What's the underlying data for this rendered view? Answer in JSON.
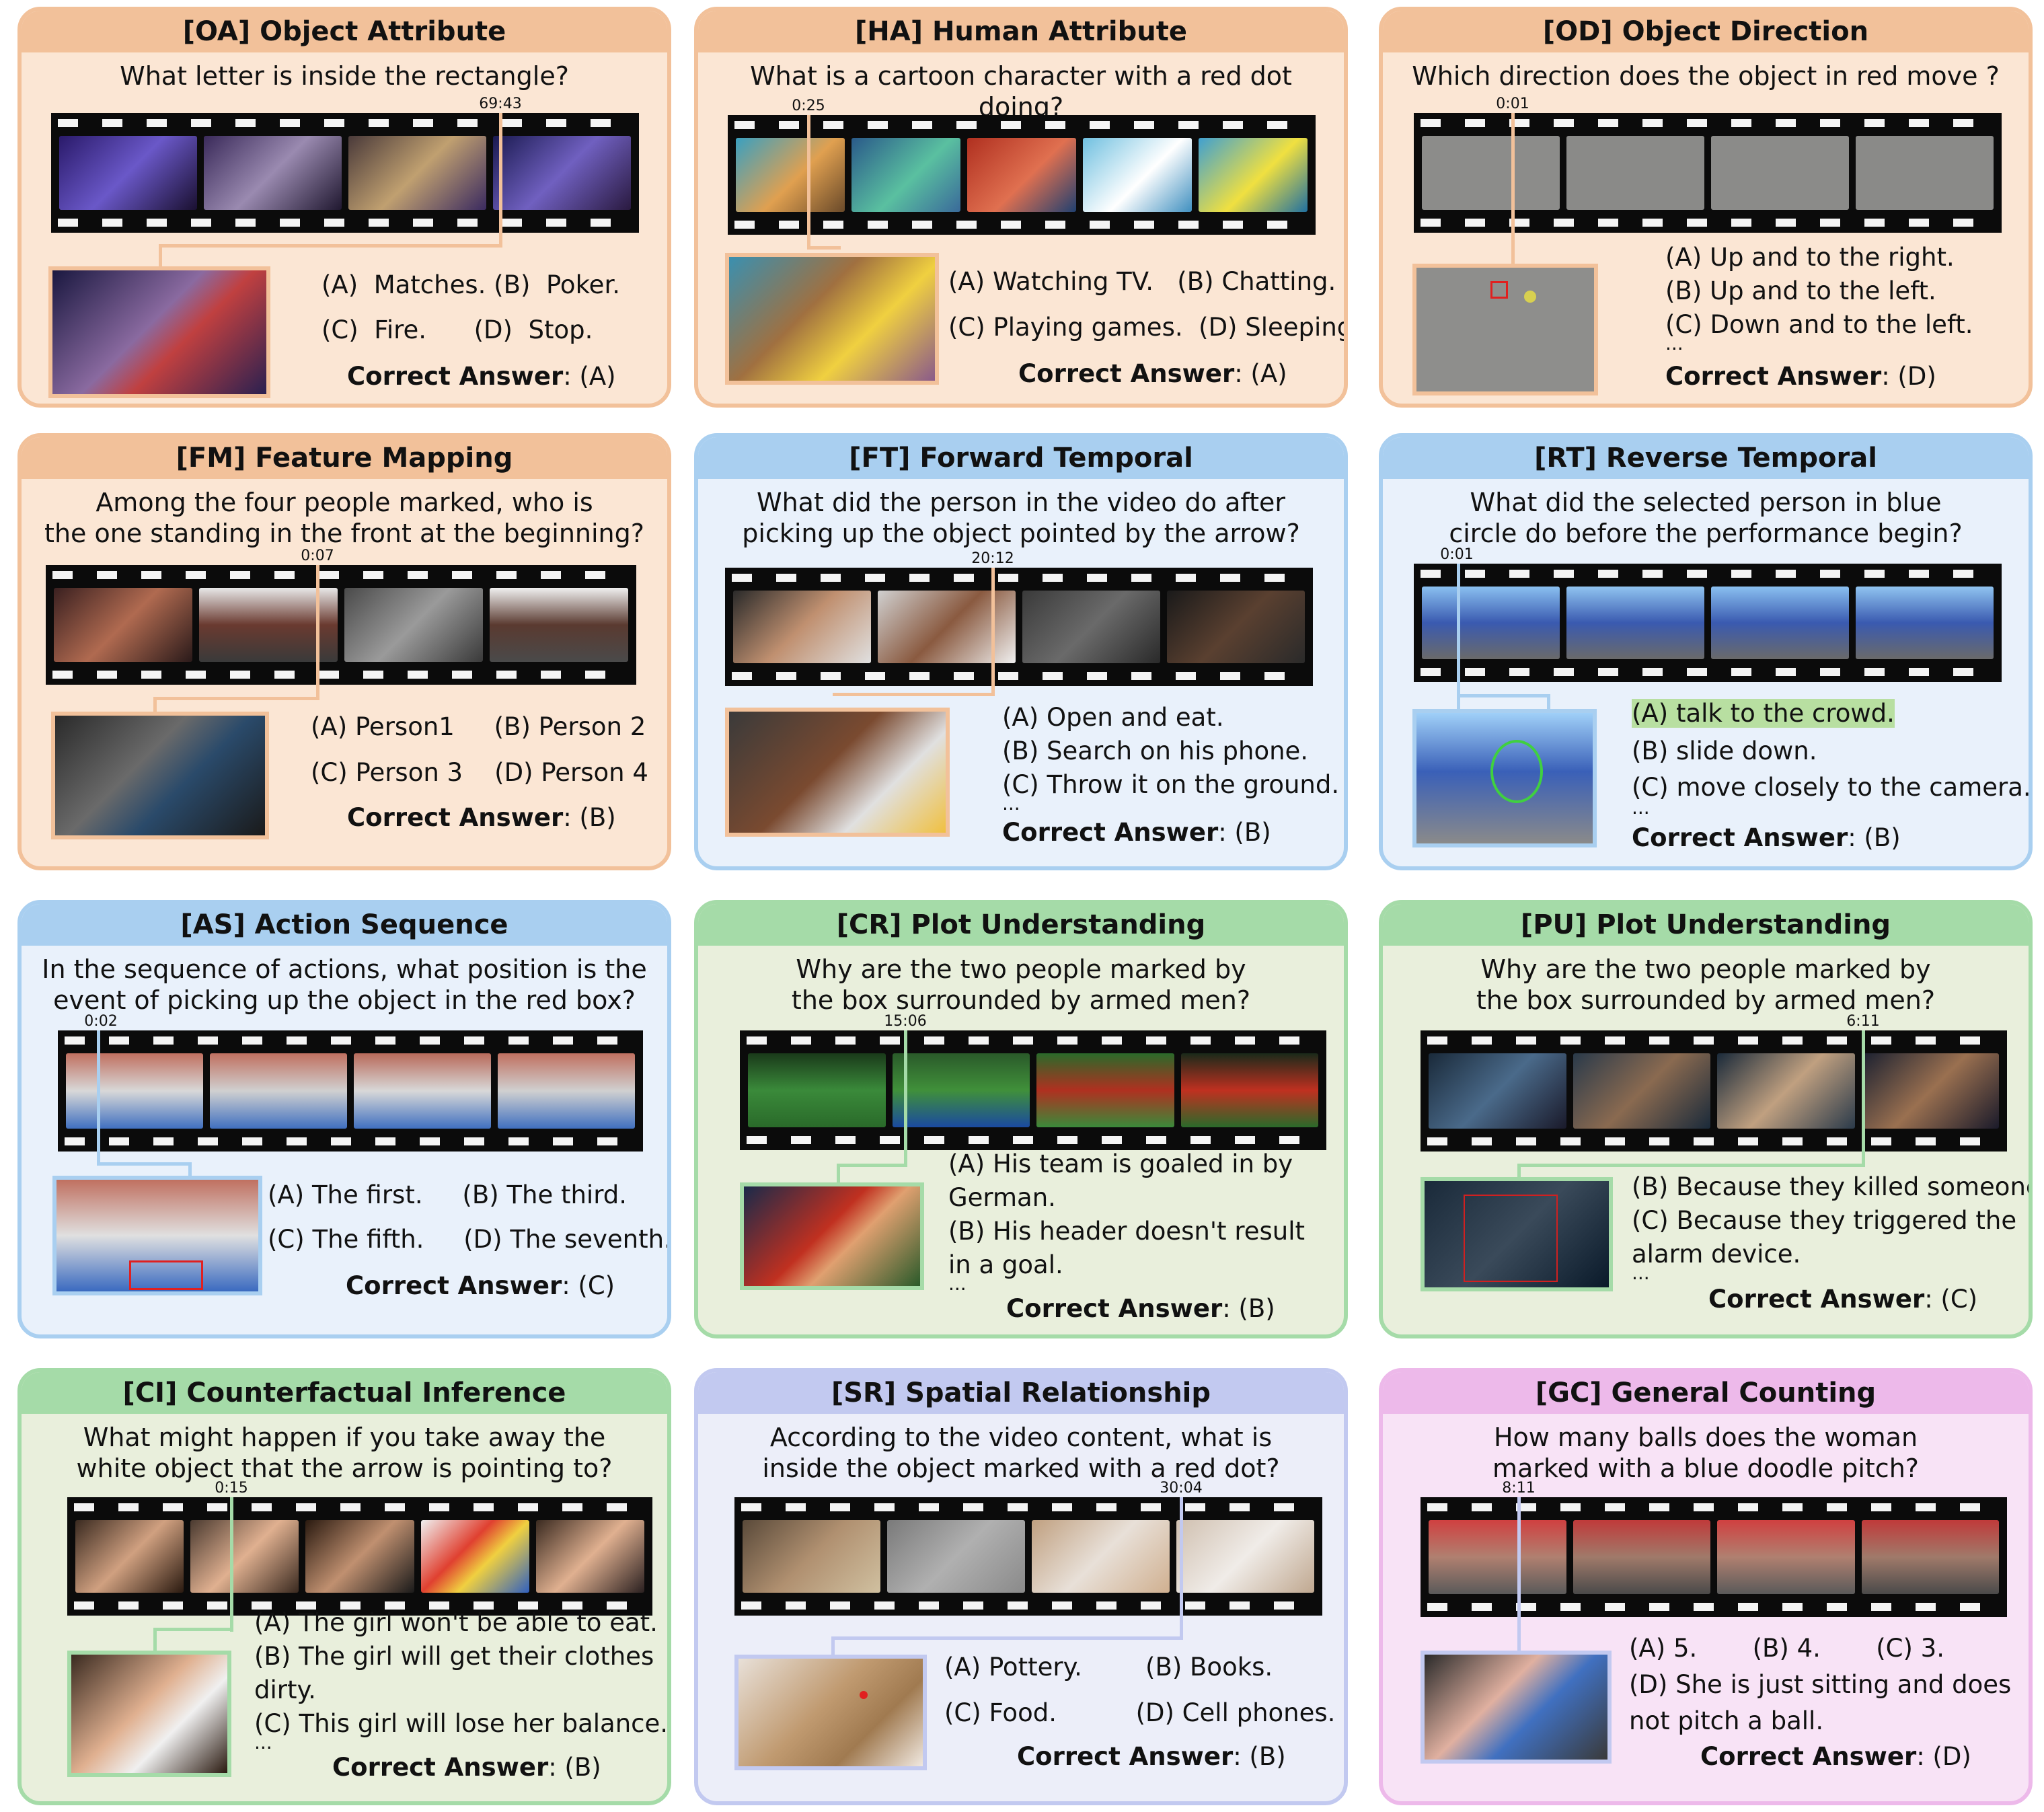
{
  "panels": [
    {
      "id": "oa",
      "title": "[OA] Object Attribute",
      "question": "What letter is inside the rectangle?",
      "timestamp": "69:43",
      "answers": [
        "(A)  Matches. (B)  Poker.",
        "(C)  Fire.      (D)  Stop."
      ],
      "correct_label": "Correct Answer",
      "correct": ": (A)"
    },
    {
      "id": "ha",
      "title": "[HA] Human Attribute",
      "question": "What is a cartoon character with a red dot doing?",
      "timestamp": "0:25",
      "answers": [
        "(A) Watching TV.   (B) Chatting.",
        "(C) Playing games.  (D) Sleeping."
      ],
      "correct_label": "Correct Answer",
      "correct": ": (A)"
    },
    {
      "id": "od",
      "title": "[OD] Object Direction",
      "question": "Which direction does the object in red move ?",
      "timestamp": "0:01",
      "answers": [
        "(A) Up and to the right.",
        "(B) Up and to the left.",
        "(C) Down and to the left.",
        "..."
      ],
      "correct_label": "Correct Answer",
      "correct": ": (D)"
    },
    {
      "id": "fm",
      "title": "[FM] Feature Mapping",
      "question": "Among the four people marked, who is\nthe one standing in the front at the beginning?",
      "timestamp": "0:07",
      "answers": [
        "(A) Person1     (B) Person 2",
        "(C) Person 3    (D) Person 4"
      ],
      "correct_label": "Correct Answer",
      "correct": ": (B)"
    },
    {
      "id": "ft",
      "title": "[FT] Forward Temporal",
      "question": "What did the person in the video do after\npicking up the object pointed by the arrow?",
      "timestamp": "20:12",
      "answers": [
        "(A) Open and eat.",
        "(B) Search on his phone.",
        "(C) Throw it on the ground.",
        "..."
      ],
      "correct_label": "Correct Answer",
      "correct": ": (B)"
    },
    {
      "id": "rt",
      "title": "[RT] Reverse Temporal",
      "question": "What did the selected person in blue\ncircle do before the performance begin?",
      "timestamp": "0:01",
      "answers": [
        "(A) talk to the crowd.",
        "(B) slide down.",
        "(C) move closely to the camera.",
        "..."
      ],
      "correct_label": "Correct Answer",
      "correct": ": (B)"
    },
    {
      "id": "as",
      "title": "[AS] Action Sequence",
      "question": "In the sequence of actions, what position is the\nevent of picking up the object in the red box?",
      "timestamp": "0:02",
      "answers": [
        "(A) The first.     (B) The third.",
        "(C) The fifth.     (D) The seventh."
      ],
      "correct_label": "Correct Answer",
      "correct": ": (C)"
    },
    {
      "id": "cr",
      "title": "[CR] Plot Understanding",
      "question": "Why are the two people marked by\nthe box surrounded by armed men?",
      "timestamp": "15:06",
      "answers": [
        "(A) His team is goaled in by",
        "German.",
        "(B) His header doesn't result",
        "in a goal.",
        "..."
      ],
      "correct_label": "Correct Answer",
      "correct": ": (B)"
    },
    {
      "id": "pu",
      "title": "[PU] Plot Understanding",
      "question": "Why are the two people marked by\nthe box surrounded by armed men?",
      "timestamp": "6:11",
      "answers": [
        "(B) Because they killed someone.",
        "(C) Because they triggered the",
        "alarm device.",
        "..."
      ],
      "correct_label": "Correct Answer",
      "correct": ": (C)"
    },
    {
      "id": "ci",
      "title": "[CI] Counterfactual Inference",
      "question": "What might happen if you take away the\nwhite object that the arrow is pointing to?",
      "timestamp": "0:15",
      "answers": [
        "(A) The girl won't be able to eat.",
        "(B) The girl will get their clothes",
        "dirty.",
        "(C) This girl will lose her balance.",
        "..."
      ],
      "correct_label": "Correct Answer",
      "correct": ": (B)"
    },
    {
      "id": "sr",
      "title": "[SR] Spatial Relationship",
      "question": "According to the video content, what is\ninside the object marked with a red dot?",
      "timestamp": "30:04",
      "answers": [
        "(A) Pottery.        (B) Books.",
        "(C) Food.          (D) Cell phones."
      ],
      "correct_label": "Correct Answer",
      "correct": ": (B)"
    },
    {
      "id": "gc",
      "title": "[GC] General Counting",
      "question": "How many balls does the woman\nmarked with a blue doodle pitch?",
      "timestamp": "8:11",
      "answers": [
        "(A) 5.       (B) 4.       (C) 3.",
        "(D) She is just sitting and does",
        "not pitch a ball."
      ],
      "correct_label": "Correct Answer",
      "correct": ": (D)"
    }
  ],
  "colors": {
    "orange": "#f2c19a",
    "blue": "#a9cff0",
    "green": "#a5dba8",
    "lavender": "#c2c9f0",
    "pink": "#edb9ea",
    "highlight": "#b8dfa1"
  }
}
